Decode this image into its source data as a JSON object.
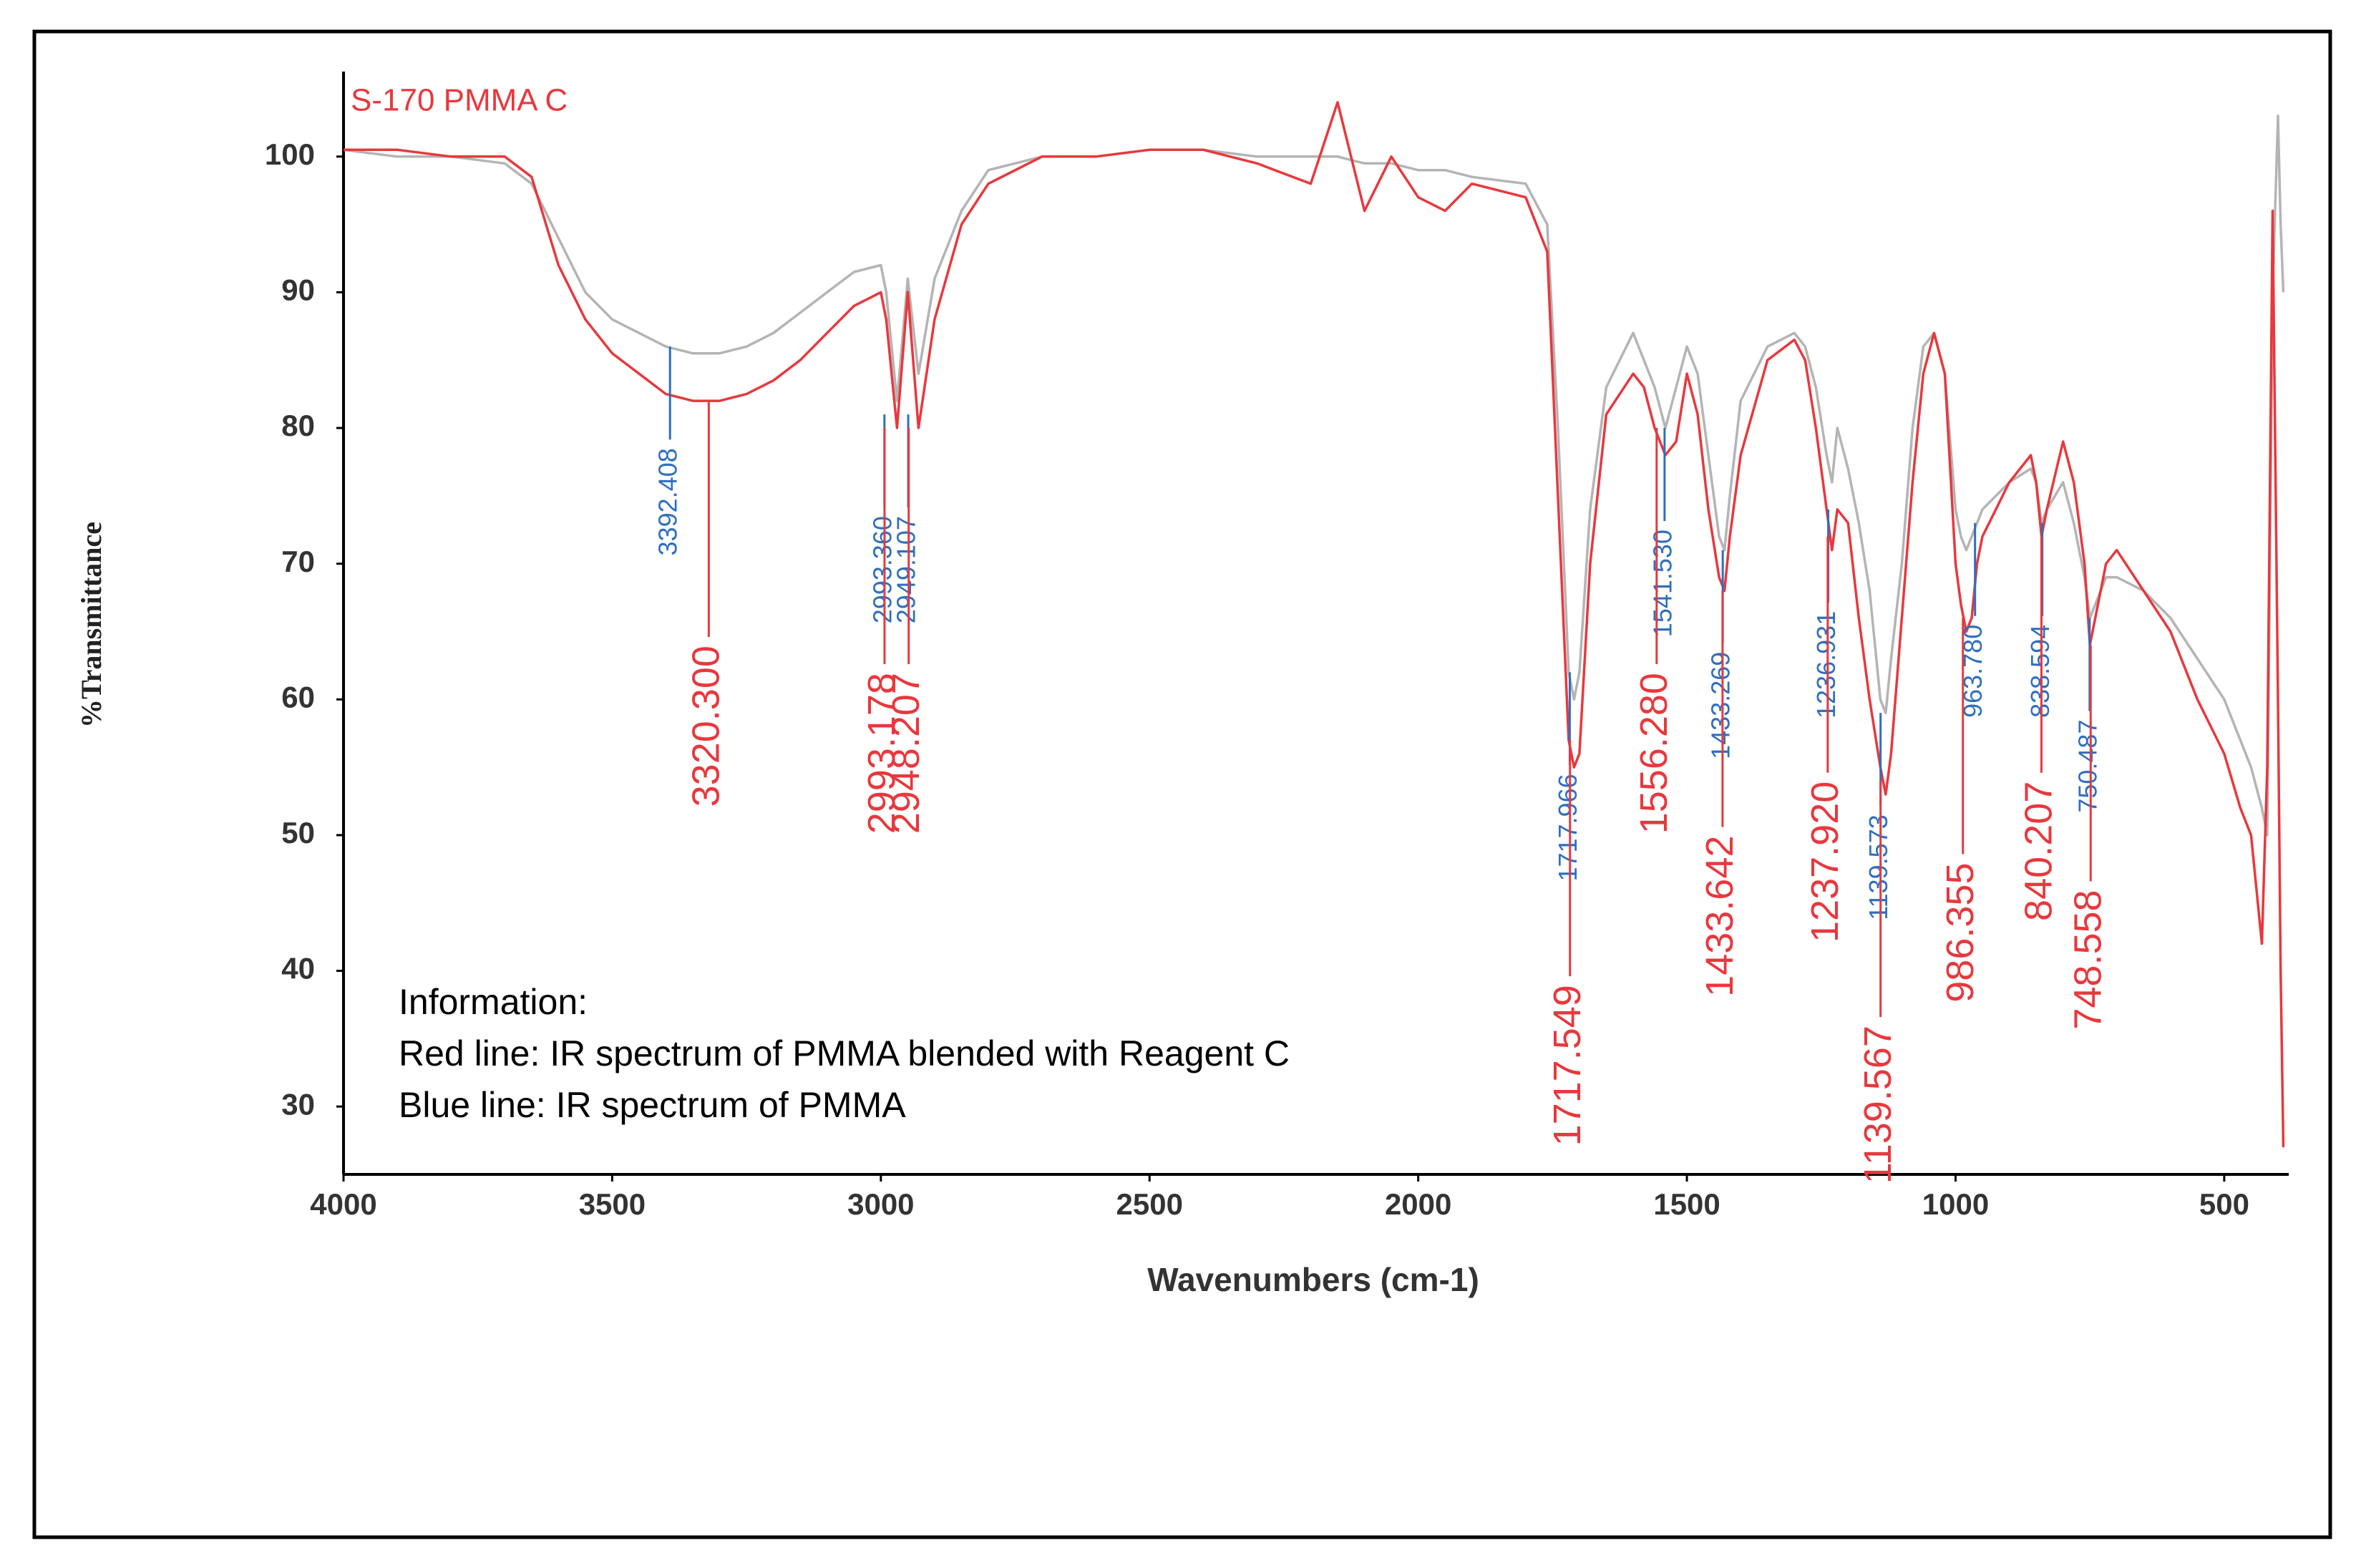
{
  "chart_data": {
    "type": "line",
    "x_label": "Wavenumbers (cm-1)",
    "y_label": "%Transmittance",
    "xlim": [
      4000,
      380
    ],
    "ylim": [
      25,
      106
    ],
    "xticks": [
      4000,
      3500,
      3000,
      2500,
      2000,
      1500,
      1000,
      500
    ],
    "yticks": [
      30,
      40,
      50,
      60,
      70,
      80,
      90,
      100
    ],
    "x": [
      4000,
      3900,
      3800,
      3700,
      3650,
      3600,
      3550,
      3500,
      3450,
      3400,
      3350,
      3300,
      3250,
      3200,
      3150,
      3100,
      3050,
      3000,
      2990,
      2970,
      2950,
      2930,
      2900,
      2850,
      2800,
      2700,
      2600,
      2500,
      2400,
      2300,
      2200,
      2150,
      2100,
      2050,
      2000,
      1950,
      1900,
      1800,
      1760,
      1740,
      1720,
      1710,
      1700,
      1680,
      1650,
      1600,
      1580,
      1560,
      1540,
      1520,
      1500,
      1480,
      1460,
      1440,
      1430,
      1420,
      1400,
      1350,
      1300,
      1280,
      1260,
      1240,
      1230,
      1220,
      1200,
      1180,
      1160,
      1140,
      1130,
      1120,
      1100,
      1080,
      1060,
      1040,
      1020,
      1000,
      990,
      980,
      970,
      960,
      950,
      900,
      860,
      850,
      840,
      830,
      800,
      780,
      760,
      750,
      740,
      720,
      700,
      650,
      600,
      550,
      500,
      470,
      450,
      430,
      420,
      410,
      400,
      395,
      390
    ],
    "series": [
      {
        "color": "#b4b4b4",
        "values": [
          100.5,
          100,
          100,
          99.5,
          98,
          94,
          90,
          88,
          87,
          86,
          85.5,
          85.5,
          86,
          87,
          88.5,
          90,
          91.5,
          92,
          90,
          82,
          91,
          84,
          91,
          96,
          99,
          100,
          100,
          100.5,
          100.5,
          100,
          100,
          100,
          99.5,
          99.5,
          99,
          99,
          98.5,
          98,
          95,
          80,
          62,
          60,
          62,
          74,
          83,
          87,
          85,
          83,
          80,
          83,
          86,
          84,
          78,
          72,
          71,
          75,
          82,
          86,
          87,
          86,
          83,
          78,
          76,
          80,
          77,
          73,
          68,
          60,
          59,
          63,
          70,
          80,
          86,
          87,
          84,
          74,
          72,
          71,
          72,
          73,
          74,
          76,
          77,
          76,
          73,
          74,
          76,
          73,
          69,
          66,
          67,
          69,
          69,
          68,
          66,
          63,
          60,
          57,
          55,
          52,
          50,
          90,
          103,
          95,
          90
        ]
      },
      {
        "name": "S-170 PMMA C",
        "color": "#e8383d",
        "values": [
          100.5,
          100.5,
          100,
          100,
          98.5,
          92,
          88,
          85.5,
          84,
          82.5,
          82,
          82,
          82.5,
          83.5,
          85,
          87,
          89,
          90,
          88,
          80,
          90,
          80,
          88,
          95,
          98,
          100,
          100,
          100.5,
          100.5,
          99.5,
          98,
          104,
          96,
          100,
          97,
          96,
          98,
          97,
          93,
          75,
          57,
          55,
          56,
          70,
          81,
          84,
          83,
          80,
          78,
          79,
          84,
          81,
          74,
          69,
          68,
          72,
          78,
          85,
          86.5,
          85,
          80,
          74,
          71,
          74,
          73,
          66,
          60,
          55,
          53,
          56,
          66,
          76,
          84,
          87,
          84,
          70,
          67,
          65,
          66,
          70,
          72,
          76,
          78,
          76,
          72,
          74,
          79,
          76,
          70,
          64,
          66,
          70,
          71,
          68,
          65,
          60,
          56,
          52,
          50,
          42,
          55,
          96,
          60,
          40,
          27
        ]
      }
    ],
    "peak_groups": [
      {
        "color": "#2e6fbf",
        "peaks": [
          {
            "text": "3392.408",
            "x": 3392.408,
            "y": 86
          },
          {
            "text": "2993.360",
            "x": 2993.36,
            "y": 81
          },
          {
            "text": "2949.107",
            "x": 2949.107,
            "y": 81
          },
          {
            "text": "1717.966",
            "x": 1717.966,
            "y": 62
          },
          {
            "text": "1541.530",
            "x": 1541.53,
            "y": 80
          },
          {
            "text": "1433.269",
            "x": 1433.269,
            "y": 71
          },
          {
            "text": "1236.931",
            "x": 1236.931,
            "y": 74
          },
          {
            "text": "1139.573",
            "x": 1139.573,
            "y": 59
          },
          {
            "text": "963.780",
            "x": 963.78,
            "y": 73
          },
          {
            "text": "838.594",
            "x": 838.594,
            "y": 73
          },
          {
            "text": "750.487",
            "x": 750.487,
            "y": 66
          }
        ]
      },
      {
        "color": "#e8383d",
        "peaks": [
          {
            "text": "3320.300",
            "x": 3320.3,
            "y": 82
          },
          {
            "text": "2993.178",
            "x": 2993.178,
            "y": 80
          },
          {
            "text": "2948.207",
            "x": 2948.207,
            "y": 80
          },
          {
            "text": "1717.549",
            "x": 1717.549,
            "y": 57
          },
          {
            "text": "1556.280",
            "x": 1556.28,
            "y": 80
          },
          {
            "text": "1433.642",
            "x": 1433.642,
            "y": 68
          },
          {
            "text": "1237.920",
            "x": 1237.92,
            "y": 72
          },
          {
            "text": "1139.567",
            "x": 1139.567,
            "y": 54
          },
          {
            "text": "986.355",
            "x": 986.355,
            "y": 66
          },
          {
            "text": "840.207",
            "x": 840.207,
            "y": 72
          },
          {
            "text": "748.558",
            "x": 748.558,
            "y": 64
          }
        ]
      }
    ],
    "notes": [
      "Information:",
      "Red line: IR spectrum of PMMA blended with Reagent C",
      "Blue line: IR spectrum of PMMA"
    ]
  }
}
